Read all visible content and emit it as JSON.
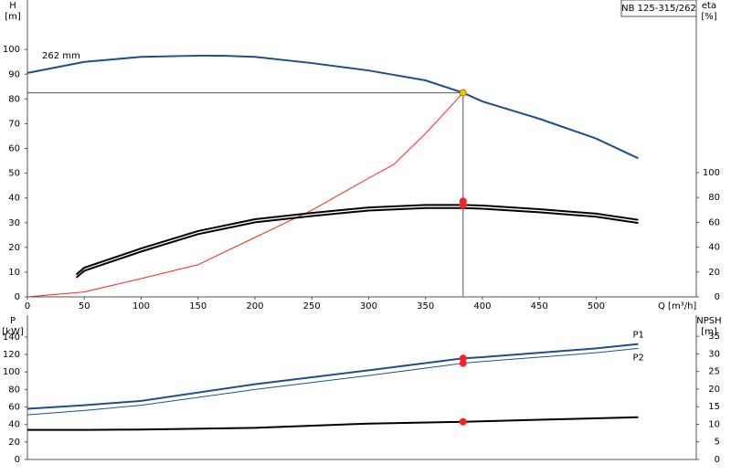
{
  "chart_data": [
    {
      "type": "line",
      "title": "NB 125-315/262",
      "y_label": [
        "H",
        "[m]"
      ],
      "y2_label": [
        "eta",
        "[%]"
      ],
      "x_label": "Q [m³/h]",
      "annotation": "262 mm",
      "xlim": [
        0,
        588
      ],
      "xticks": [
        0,
        50,
        100,
        150,
        200,
        250,
        300,
        350,
        400,
        450,
        500
      ],
      "ylim": [
        0,
        120
      ],
      "yticks": [
        0,
        10,
        20,
        30,
        40,
        50,
        60,
        70,
        80,
        90,
        100
      ],
      "y2lim": [
        0,
        239
      ],
      "y2ticks": [
        0,
        20,
        40,
        60,
        80,
        100
      ],
      "series": [
        {
          "color": "#1f4e8c",
          "width": 2,
          "x": [
            0,
            50,
            100,
            150,
            170,
            200,
            250,
            300,
            350,
            383,
            400,
            450,
            500,
            537
          ],
          "values": [
            90.5,
            95,
            97,
            97.5,
            97.5,
            97,
            94.5,
            91.5,
            87.5,
            82.5,
            79,
            72,
            64,
            56
          ]
        },
        {
          "color": "#ff2020",
          "width": 1,
          "x": [
            0,
            50,
            100,
            150,
            200,
            250,
            300,
            322,
            350,
            383
          ],
          "values": [
            0,
            2,
            7.4,
            13,
            24,
            35,
            48,
            53.5,
            66,
            82.5
          ]
        },
        {
          "color": "#000000",
          "width": 2,
          "axis": "y2",
          "x": [
            43,
            50,
            100,
            150,
            200,
            250,
            300,
            350,
            383,
            400,
            450,
            500,
            537
          ],
          "values": [
            18,
            23.5,
            39,
            53,
            62.5,
            67.6,
            72,
            74,
            74,
            73.5,
            70.6,
            67,
            62
          ]
        },
        {
          "color": "#000000",
          "width": 2,
          "axis": "y2",
          "x": [
            43,
            50,
            100,
            150,
            200,
            250,
            300,
            350,
            383,
            400,
            450,
            500,
            537
          ],
          "values": [
            15.5,
            21,
            36.5,
            50.5,
            60,
            65.1,
            69.5,
            71.5,
            71.5,
            71,
            68.1,
            64.5,
            59.5
          ]
        }
      ],
      "markers": [
        {
          "x": 383,
          "y": 82.5,
          "color": "#f5c400"
        },
        {
          "x": 383,
          "y": 77,
          "color": "#ff2020",
          "axis": "y2"
        },
        {
          "x": 383,
          "y": 74,
          "color": "#ff2020",
          "axis": "y2"
        }
      ]
    },
    {
      "type": "line",
      "y_label": [
        "P",
        "[kW]"
      ],
      "y2_label": [
        "NPSH",
        "[m]"
      ],
      "xlim": [
        0,
        588
      ],
      "ylim": [
        0,
        165
      ],
      "yticks": [
        0,
        20,
        40,
        60,
        80,
        100,
        120,
        140
      ],
      "y2lim": [
        0,
        41
      ],
      "y2ticks": [
        0,
        5,
        10,
        15,
        20,
        25,
        30,
        35
      ],
      "series": [
        {
          "name": "P1",
          "color": "#1f4e8c",
          "width": 2,
          "x": [
            0,
            50,
            100,
            200,
            300,
            383,
            400,
            500,
            537
          ],
          "values": [
            58,
            62,
            67,
            86,
            102,
            115.6,
            117,
            127,
            132
          ]
        },
        {
          "name": "P2",
          "color": "#1f4e8c",
          "width": 1,
          "x": [
            0,
            50,
            100,
            200,
            300,
            383,
            400,
            500,
            537
          ],
          "values": [
            51,
            56,
            62,
            80,
            96,
            110,
            112,
            122,
            127
          ]
        },
        {
          "color": "#000000",
          "width": 2,
          "axis": "y2",
          "x": [
            0,
            53,
            100,
            200,
            300,
            383,
            450,
            537
          ],
          "values": [
            8.4,
            8.4,
            8.5,
            9,
            10.2,
            10.7,
            11.3,
            12
          ]
        }
      ],
      "markers": [
        {
          "x": 383,
          "y": 115.6,
          "color": "#ff2020"
        },
        {
          "x": 383,
          "y": 110,
          "color": "#ff2020"
        },
        {
          "x": 383,
          "y": 10.7,
          "color": "#ff2020",
          "axis": "y2"
        }
      ]
    }
  ]
}
